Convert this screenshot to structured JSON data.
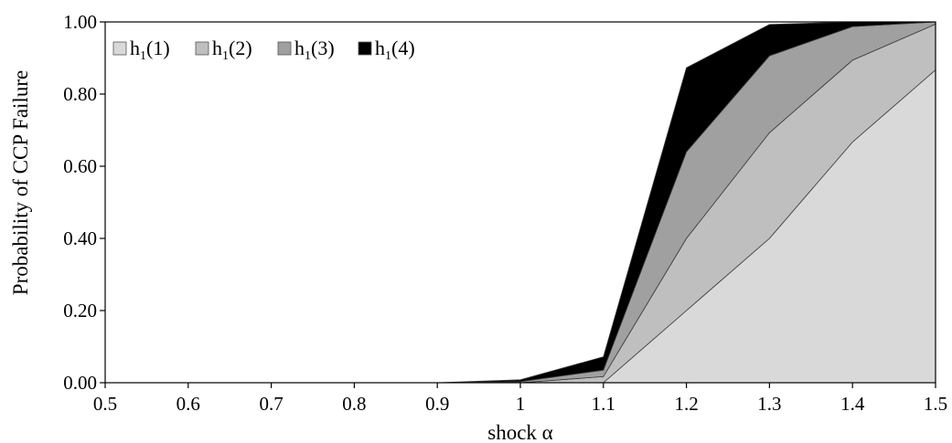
{
  "chart_data": {
    "type": "area",
    "stacked": true,
    "xlabel": "shock α",
    "ylabel": "Probability of CCP Failure",
    "x": [
      0.5,
      0.6,
      0.7,
      0.8,
      0.9,
      1.0,
      1.1,
      1.2,
      1.3,
      1.4,
      1.5
    ],
    "x_tick_labels": [
      "0.5",
      "0.6",
      "0.7",
      "0.8",
      "0.9",
      "1",
      "1.1",
      "1.2",
      "1.3",
      "1.4",
      "1.5"
    ],
    "xlim": [
      0.5,
      1.5
    ],
    "ylim": [
      0,
      1
    ],
    "y_ticks": [
      0,
      0.2,
      0.4,
      0.6,
      0.8,
      1.0
    ],
    "y_tick_labels": [
      "0.00",
      "0.20",
      "0.40",
      "0.60",
      "0.80",
      "1.00"
    ],
    "legend_position": "top-left",
    "grid": false,
    "series": [
      {
        "legend_base": "h",
        "legend_sub": "1",
        "legend_arg": "(1)",
        "color": "#d9d9d9",
        "values": [
          0,
          0,
          0,
          0,
          0,
          0,
          0,
          0.2,
          0.4,
          0.667,
          0.867
        ]
      },
      {
        "legend_base": "h",
        "legend_sub": "1",
        "legend_arg": "(2)",
        "color": "#bfbfbf",
        "values": [
          0,
          0,
          0,
          0,
          0,
          0,
          0.017,
          0.2,
          0.293,
          0.227,
          0.127
        ]
      },
      {
        "legend_base": "h",
        "legend_sub": "1",
        "legend_arg": "(3)",
        "color": "#a0a0a0",
        "values": [
          0,
          0,
          0,
          0,
          0,
          0.003,
          0.018,
          0.24,
          0.213,
          0.093,
          0.006
        ]
      },
      {
        "legend_base": "h",
        "legend_sub": "1",
        "legend_arg": "(4)",
        "color": "#000000",
        "values": [
          0,
          0,
          0,
          0,
          0,
          0.005,
          0.037,
          0.233,
          0.087,
          0.013,
          0
        ]
      }
    ]
  }
}
